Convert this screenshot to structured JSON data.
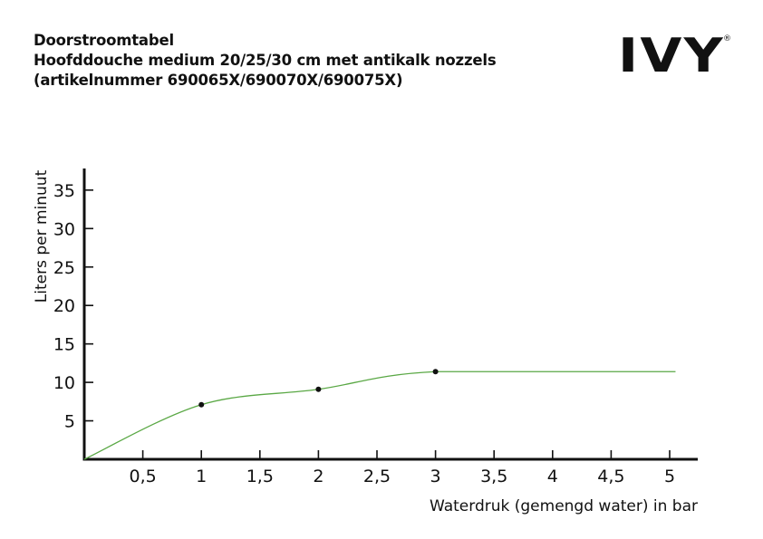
{
  "header": {
    "line1": "Doorstroomtabel",
    "line2": "Hoofddouche medium 20/25/30 cm met antikalk nozzels",
    "line3": "(artikelnummer 690065X/690070X/690075X)"
  },
  "logo": {
    "text": "IVY",
    "mark": "®"
  },
  "chart_data": {
    "type": "line",
    "xlabel": "Waterdruk (gemengd water) in bar",
    "ylabel": "Liters per minuut",
    "xlim": [
      0,
      5.25
    ],
    "ylim": [
      0,
      38
    ],
    "x_ticks": [
      0.5,
      1,
      1.5,
      2,
      2.5,
      3,
      3.5,
      4,
      4.5,
      5
    ],
    "x_tick_labels": [
      "0,5",
      "1",
      "1,5",
      "2",
      "2,5",
      "3",
      "3,5",
      "4",
      "4,5",
      "5"
    ],
    "y_ticks": [
      5,
      10,
      15,
      20,
      25,
      30,
      35
    ],
    "y_tick_labels": [
      "5",
      "10",
      "15",
      "20",
      "25",
      "30",
      "35"
    ],
    "grid": false,
    "line_color": "#5aa845",
    "series": [
      {
        "x": [
          0,
          1,
          2,
          3,
          5.05
        ],
        "y": [
          0,
          7.1,
          9.1,
          11.4,
          11.4
        ],
        "markers": [
          [
            1,
            7.1
          ],
          [
            2,
            9.1
          ],
          [
            3,
            11.4
          ]
        ]
      }
    ]
  }
}
